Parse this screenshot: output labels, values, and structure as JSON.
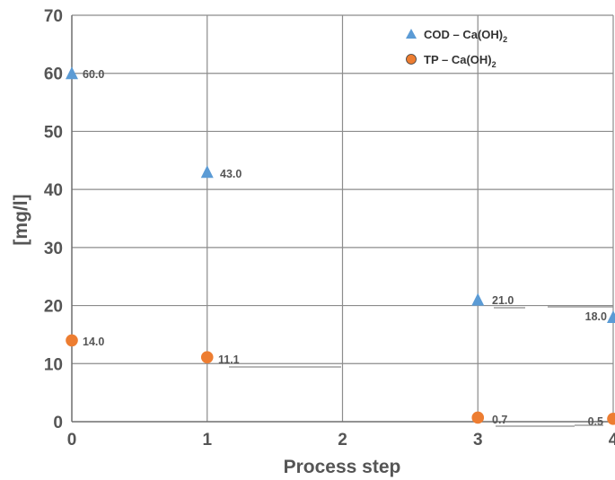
{
  "chart_data": {
    "type": "scatter",
    "title": "",
    "xlabel": "Process step",
    "ylabel": "[mg/l]",
    "xlim": [
      0,
      4
    ],
    "ylim": [
      0,
      70
    ],
    "x_ticks": [
      "0",
      "1",
      "2",
      "3",
      "4"
    ],
    "y_ticks": [
      "0",
      "10",
      "20",
      "30",
      "40",
      "50",
      "60",
      "70"
    ],
    "grid": true,
    "legend_position": "top-right",
    "series": [
      {
        "name": "COD – Ca(OH)₂",
        "name_main": "COD – Ca(OH)",
        "name_sub": "2",
        "marker": "triangle",
        "color": "#5B9BD5",
        "points": [
          {
            "x": 0,
            "y": 60.0,
            "label": "60.0"
          },
          {
            "x": 1,
            "y": 43.0,
            "label": "43.0"
          },
          {
            "x": 3,
            "y": 21.0,
            "label": "21.0"
          },
          {
            "x": 4,
            "y": 18.0,
            "label": "18.0"
          }
        ]
      },
      {
        "name": "TP – Ca(OH)₂",
        "name_main": "TP – Ca(OH)",
        "name_sub": "2",
        "marker": "circle",
        "color": "#ED7D31",
        "points": [
          {
            "x": 0,
            "y": 14.0,
            "label": "14.0"
          },
          {
            "x": 1,
            "y": 11.1,
            "label": "11.1"
          },
          {
            "x": 3,
            "y": 0.7,
            "label": "0.7"
          },
          {
            "x": 4,
            "y": 0.5,
            "label": "0.5"
          }
        ]
      }
    ]
  }
}
